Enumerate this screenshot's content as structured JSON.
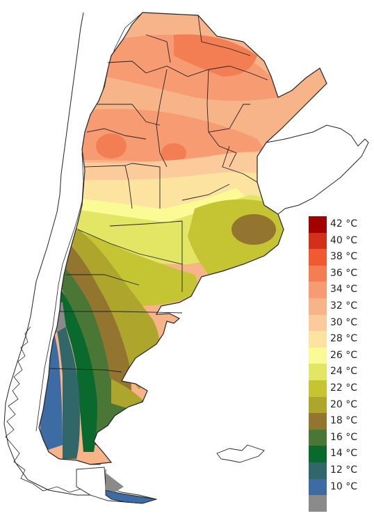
{
  "legend": {
    "items": [
      {
        "label": "42 °C",
        "color": "#a30000"
      },
      {
        "label": "40 °C",
        "color": "#d2301a"
      },
      {
        "label": "38 °C",
        "color": "#f05a31"
      },
      {
        "label": "36 °C",
        "color": "#f47e53"
      },
      {
        "label": "34 °C",
        "color": "#f69b72"
      },
      {
        "label": "32 °C",
        "color": "#f8b489"
      },
      {
        "label": "30 °C",
        "color": "#fbcb9c"
      },
      {
        "label": "28 °C",
        "color": "#fde3a0"
      },
      {
        "label": "26 °C",
        "color": "#fbfb95"
      },
      {
        "label": "24 °C",
        "color": "#e3e565"
      },
      {
        "label": "22 °C",
        "color": "#c5c534"
      },
      {
        "label": "20 °C",
        "color": "#ada52c"
      },
      {
        "label": "18 °C",
        "color": "#937530"
      },
      {
        "label": "16 °C",
        "color": "#4a7735"
      },
      {
        "label": "14 °C",
        "color": "#0a6a2d"
      },
      {
        "label": "12 °C",
        "color": "#32676a"
      },
      {
        "label": "10 °C",
        "color": "#3d6ba3"
      },
      {
        "label": "",
        "color": "#8a8a8a"
      }
    ]
  }
}
